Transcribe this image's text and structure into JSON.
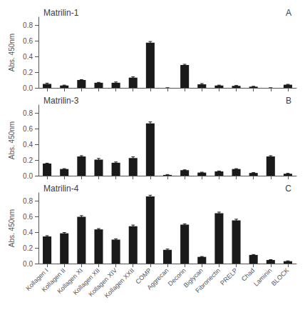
{
  "chart_data": [
    {
      "type": "bar",
      "title": "Matrilin-1",
      "annotations": [
        "A"
      ],
      "ylabel": "Abs. 450nm",
      "categories": [
        "Kollagen I",
        "Kollagen II",
        "Kollagen XI",
        "Kollagen XII",
        "Kollagen XIV",
        "Kollagen XXII",
        "COMP",
        "Aggrecan",
        "Decorin",
        "Biglycan",
        "Fibronectin",
        "PRELP",
        "Chad",
        "Laminin",
        "BLOCK"
      ],
      "values": [
        0.05,
        0.03,
        0.1,
        0.065,
        0.065,
        0.13,
        0.575,
        0.0,
        0.29,
        0.045,
        0.03,
        0.025,
        0.015,
        0.0,
        0.04
      ],
      "errors": [
        0.01,
        0.005,
        0.005,
        0.005,
        0.01,
        0.01,
        0.015,
        0.0,
        0.01,
        0.01,
        0.005,
        0.005,
        0.005,
        0.0,
        0.005
      ],
      "color": "#1a1a1a",
      "ylim": [
        0,
        0.9
      ],
      "yticks": [
        {
          "value": 0,
          "label": "0.0"
        },
        0.2,
        0.4,
        0.6,
        0.8
      ],
      "grid": false,
      "tick_labels": "y"
    },
    {
      "type": "bar",
      "title": "Matrilin-3",
      "annotations": [
        "B"
      ],
      "ylabel": "Abs. 450nm",
      "categories": [
        "Kollagen I",
        "Kollagen II",
        "Kollagen XI",
        "Kollagen XII",
        "Kollagen XIV",
        "Kollagen XXII",
        "COMP",
        "Aggrecan",
        "Decorin",
        "Biglycan",
        "Fibronectin",
        "PRELP",
        "Chad",
        "Laminin",
        "BLOCK"
      ],
      "values": [
        0.155,
        0.085,
        0.245,
        0.205,
        0.165,
        0.225,
        0.665,
        0.01,
        0.07,
        0.04,
        0.055,
        0.085,
        0.035,
        0.245,
        0.025
      ],
      "errors": [
        0.005,
        0.005,
        0.01,
        0.015,
        0.01,
        0.015,
        0.02,
        0.005,
        0.005,
        0.005,
        0.005,
        0.005,
        0.005,
        0.01,
        0.005
      ],
      "color": "#1a1a1a",
      "ylim": [
        0,
        0.9
      ],
      "yticks": [
        {
          "value": 0,
          "label": "0.0"
        },
        0.2,
        0.4,
        0.6,
        0.8
      ],
      "grid": false,
      "tick_labels": "y"
    },
    {
      "type": "bar",
      "title": "Matrilin-4",
      "annotations": [
        "C"
      ],
      "ylabel": "Abs. 450nm",
      "categories": [
        "Kollagen I",
        "Kollagen II",
        "Kollagen XI",
        "Kollagen XII",
        "Kollagen XIV",
        "Kollagen XXII",
        "COMP",
        "Aggrecan",
        "Decorin",
        "Biglycan",
        "Fibronectin",
        "PRELP",
        "Chad",
        "Laminin",
        "BLOCK"
      ],
      "values": [
        0.345,
        0.385,
        0.595,
        0.435,
        0.305,
        0.475,
        0.855,
        0.175,
        0.495,
        0.085,
        0.64,
        0.55,
        0.11,
        0.045,
        0.03
      ],
      "errors": [
        0.01,
        0.01,
        0.015,
        0.01,
        0.01,
        0.015,
        0.015,
        0.01,
        0.01,
        0.005,
        0.015,
        0.015,
        0.005,
        0.005,
        0.005
      ],
      "color": "#1a1a1a",
      "ylim": [
        0,
        0.9
      ],
      "yticks": [
        {
          "value": 0,
          "label": "0.0"
        },
        0.2,
        0.4,
        0.6,
        0.8
      ],
      "grid": false
    }
  ]
}
